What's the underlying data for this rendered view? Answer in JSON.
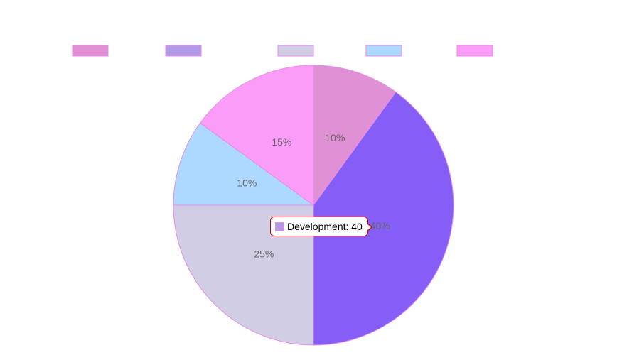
{
  "chart_data": {
    "type": "pie",
    "categories": [
      "",
      "Development",
      "",
      "",
      ""
    ],
    "values": [
      10,
      40,
      25,
      10,
      15
    ],
    "slice_labels": [
      "10%",
      "40%",
      "25%",
      "10%",
      "15%"
    ],
    "colors": [
      "#e091d6",
      "#845ef7",
      "#d0cde5",
      "#add8ff",
      "#fb9df8"
    ],
    "legend_colors": [
      "#e38fd6",
      "#b39ae8",
      "#d0cde5",
      "#add8ff",
      "#fb9df8"
    ],
    "border_color": "#e58de6",
    "legend": {
      "position": "top"
    },
    "tooltip": {
      "text": "Development: 40",
      "swatch_color": "#b39ae8",
      "border_color": "#cc0000"
    }
  }
}
